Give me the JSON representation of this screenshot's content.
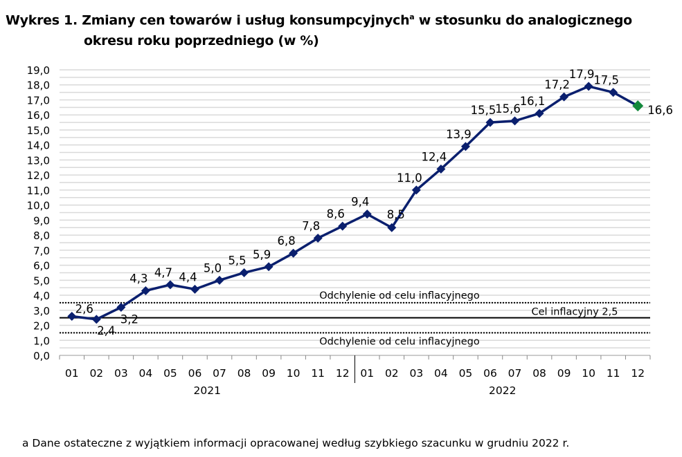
{
  "title": {
    "line1": "Wykres 1. Zmiany cen towarów i usług konsumpcyjnych",
    "superscript": "a",
    "line1_rest": " w stosunku do analogicznego",
    "line2": "okresu roku poprzedniego (w %)"
  },
  "footnote": "a Dane ostateczne z wyjątkiem informacji opracowanej według szybkiego szacunku w grudniu 2022 r.",
  "chart_data": {
    "type": "line",
    "categories": [
      "01",
      "02",
      "03",
      "04",
      "05",
      "06",
      "07",
      "08",
      "09",
      "10",
      "11",
      "12",
      "01",
      "02",
      "03",
      "04",
      "05",
      "06",
      "07",
      "08",
      "09",
      "10",
      "11",
      "12"
    ],
    "year_groups": [
      {
        "label": "2021",
        "count": 12
      },
      {
        "label": "2022",
        "count": 12
      }
    ],
    "values": [
      2.6,
      2.4,
      3.2,
      4.3,
      4.7,
      4.4,
      5.0,
      5.5,
      5.9,
      6.8,
      7.8,
      8.6,
      9.4,
      8.5,
      11.0,
      12.4,
      13.9,
      15.5,
      15.6,
      16.1,
      17.2,
      17.9,
      17.5,
      16.6
    ],
    "data_labels": [
      "2,6",
      "2,4",
      "3,2",
      "4,3",
      "4,7",
      "4,4",
      "5,0",
      "5,5",
      "5,9",
      "6,8",
      "7,8",
      "8,6",
      "9,4",
      "8,5",
      "11,0",
      "12,4",
      "13,9",
      "15,5",
      "15,6",
      "16,1",
      "17,2",
      "17,9",
      "17,5",
      "16,6"
    ],
    "ylim": [
      0,
      19
    ],
    "yticks": [
      "0,0",
      "1,0",
      "2,0",
      "3,0",
      "4,0",
      "5,0",
      "6,0",
      "7,0",
      "8,0",
      "9,0",
      "10,0",
      "11,0",
      "12,0",
      "13,0",
      "14,0",
      "15,0",
      "16,0",
      "17,0",
      "18,0",
      "19,0"
    ],
    "grid": true,
    "reference_lines": [
      {
        "value": 3.5,
        "style": "dotted",
        "label": "Odchylenie od celu inflacyjnego"
      },
      {
        "value": 2.5,
        "style": "solid",
        "label": "Cel inflacyjny 2,5"
      },
      {
        "value": 1.5,
        "style": "dotted",
        "label": "Odchylenie od celu inflacyjnego"
      }
    ],
    "colors": {
      "line": "#0a1f6e",
      "last_point": "#13883c",
      "grid": "#d9d9d9"
    }
  }
}
